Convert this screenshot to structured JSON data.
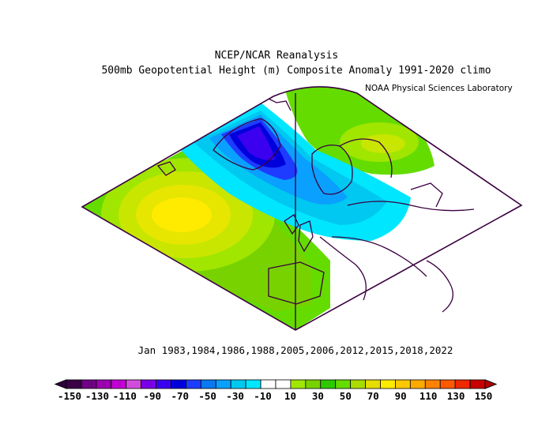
{
  "title_line1": "NCEP/NCAR Reanalysis",
  "title_line2": "500mb Geopotential Height (m) Composite Anomaly 1991-2020 climo",
  "credit": "NOAA Physical Sciences Laboratory",
  "composite_years": "Jan 1983,1984,1986,1988,2005,2006,2012,2015,2018,2022",
  "colorbar": {
    "ticks": [
      "-150",
      "-130",
      "-110",
      "-90",
      "-70",
      "-50",
      "-30",
      "-10",
      "10",
      "30",
      "50",
      "70",
      "90",
      "110",
      "130",
      "150"
    ],
    "colors": [
      "#3a0046",
      "#6e0082",
      "#9a00b0",
      "#c000d2",
      "#d24cdc",
      "#7a00e6",
      "#3c00f0",
      "#0000dc",
      "#1e3cff",
      "#0a78f0",
      "#0aa0ff",
      "#00c8f0",
      "#00e6ff",
      "#ffffff",
      "#ffffff",
      "#a0e600",
      "#78d200",
      "#2fc800",
      "#64dc00",
      "#aadc00",
      "#e6dc00",
      "#ffeb00",
      "#ffc800",
      "#ffaa00",
      "#ff8200",
      "#ff5a00",
      "#f02800",
      "#c80000"
    ],
    "below_color": "#300040",
    "above_color": "#b40000"
  }
}
